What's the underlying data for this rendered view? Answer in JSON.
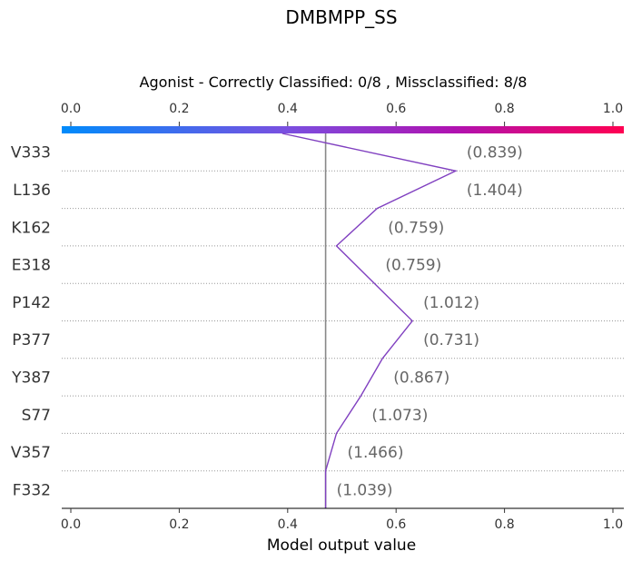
{
  "chart_data": {
    "type": "decision_plot",
    "title": "DMBMPP_SS",
    "subtitle": "Agonist - Correctly Classified: 0/8 , Missclassified: 8/8",
    "xlabel": "Model output value",
    "xlim": [
      0.0,
      1.0
    ],
    "x_ticks": [
      "0.0",
      "0.2",
      "0.4",
      "0.6",
      "0.8",
      "1.0"
    ],
    "x_tick_values": [
      0.0,
      0.2,
      0.4,
      0.6,
      0.8,
      1.0
    ],
    "base_value": 0.47,
    "features": [
      {
        "name": "V333",
        "value_label": "(0.839)"
      },
      {
        "name": "L136",
        "value_label": "(1.404)"
      },
      {
        "name": "K162",
        "value_label": "(0.759)"
      },
      {
        "name": "E318",
        "value_label": "(0.759)"
      },
      {
        "name": "P142",
        "value_label": "(1.012)"
      },
      {
        "name": "P377",
        "value_label": "(0.731)"
      },
      {
        "name": "Y387",
        "value_label": "(0.867)"
      },
      {
        "name": "S77",
        "value_label": "(1.073)"
      },
      {
        "name": "V357",
        "value_label": "(1.466)"
      },
      {
        "name": "F332",
        "value_label": "(1.039)"
      }
    ],
    "path_values": [
      0.39,
      0.71,
      0.565,
      0.49,
      0.56,
      0.63,
      0.575,
      0.535,
      0.49,
      0.47,
      0.47
    ],
    "line_color": "#8040c0",
    "colormap": [
      "#008bfb",
      "#7a4fe0",
      "#a417b6",
      "#ff0052"
    ]
  }
}
